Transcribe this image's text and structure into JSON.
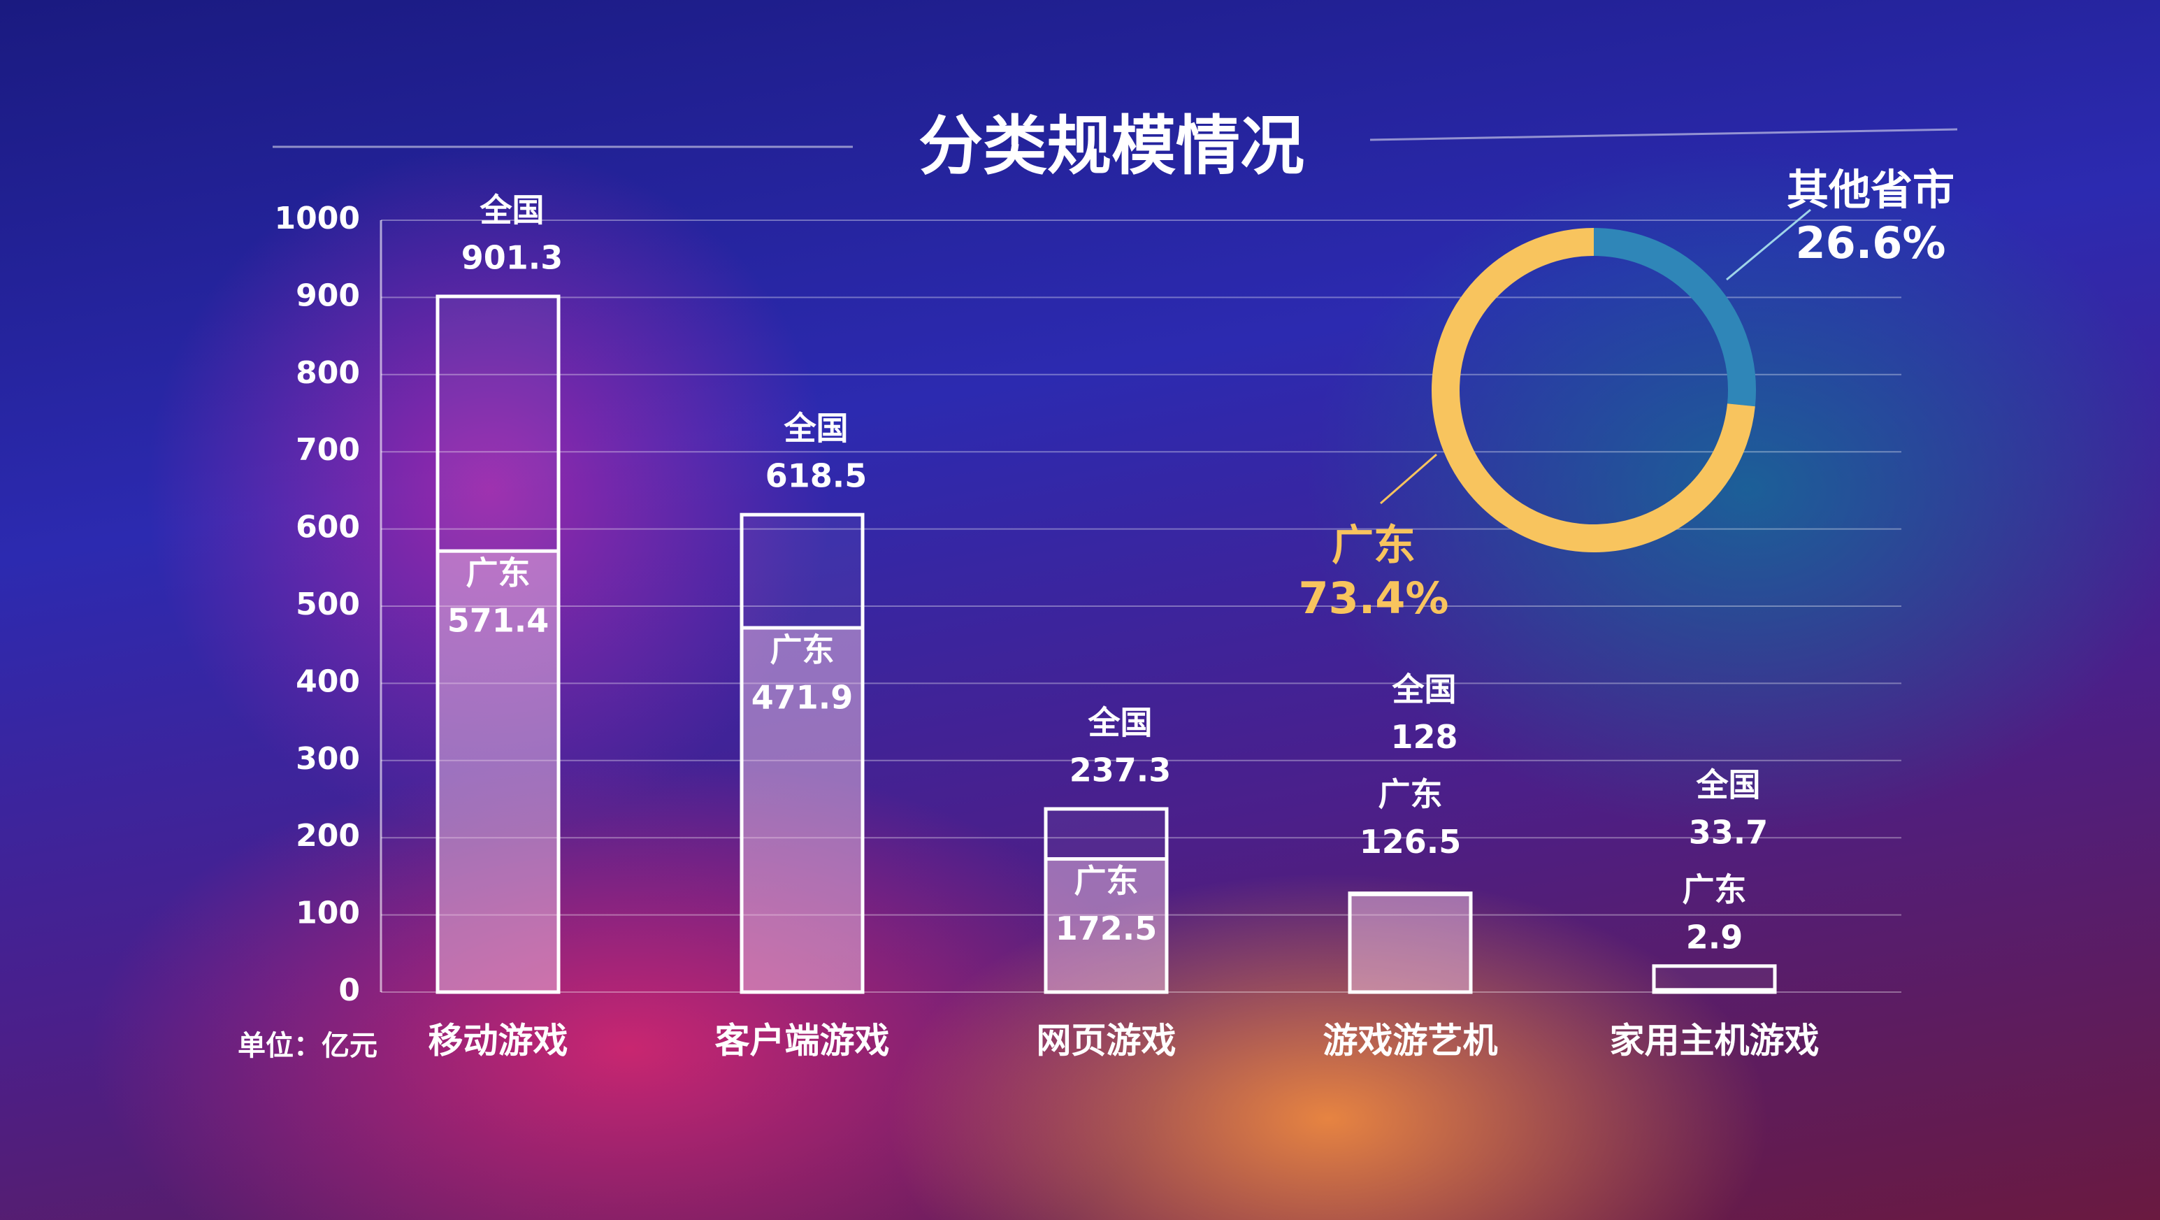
{
  "chart_data": [
    {
      "type": "bar",
      "title": "分类规模情况",
      "unit_label": "单位：亿元",
      "categories": [
        "移动游戏",
        "客户端游戏",
        "网页游戏",
        "游戏游艺机",
        "家用主机游戏"
      ],
      "series": [
        {
          "name": "全国",
          "color": "#ffffff",
          "values": [
            901.3,
            618.5,
            237.3,
            128,
            33.7
          ]
        },
        {
          "name": "广东",
          "color": "#f4c6e4",
          "values": [
            571.4,
            471.9,
            172.5,
            126.5,
            2.9
          ]
        }
      ],
      "ylim": [
        0,
        1000
      ],
      "yticks": [
        0,
        100,
        200,
        300,
        400,
        500,
        600,
        700,
        800,
        900,
        1000
      ],
      "grid": true
    },
    {
      "type": "pie",
      "categories": [
        "广东",
        "其他省市"
      ],
      "values": [
        73.4,
        26.6
      ],
      "value_labels": [
        "73.4%",
        "26.6%"
      ],
      "colors": [
        "#f8c45e",
        "#2f86b8"
      ]
    }
  ]
}
